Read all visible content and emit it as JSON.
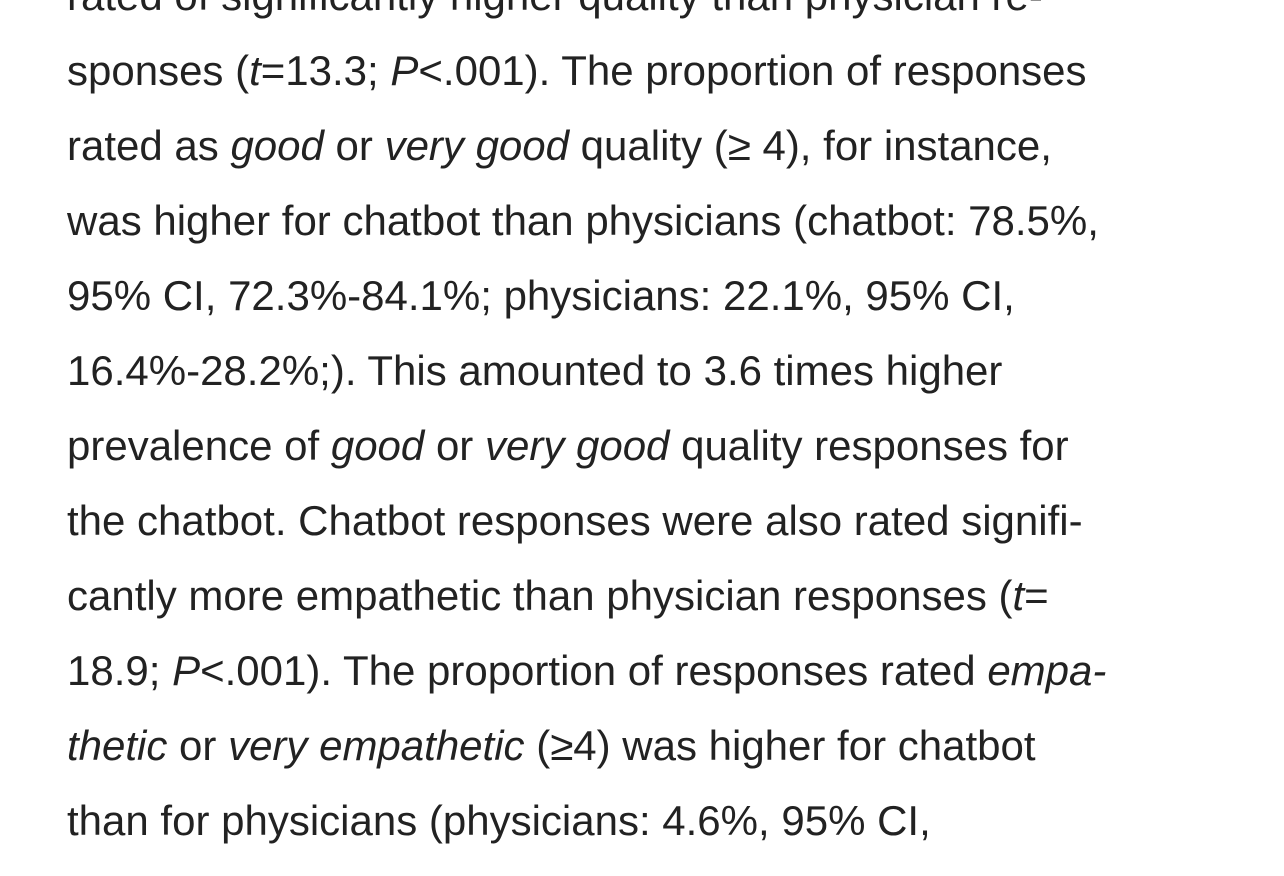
{
  "paragraph": {
    "lines": [
      [
        {
          "text": "rated of significantly higher quality than physician re-",
          "italic": false
        }
      ],
      [
        {
          "text": "sponses (",
          "italic": false
        },
        {
          "text": "t",
          "italic": true
        },
        {
          "text": "=13.3; ",
          "italic": false
        },
        {
          "text": "P",
          "italic": true
        },
        {
          "text": "<.001). The proportion of responses",
          "italic": false
        }
      ],
      [
        {
          "text": "rated as ",
          "italic": false
        },
        {
          "text": "good",
          "italic": true
        },
        {
          "text": " or ",
          "italic": false
        },
        {
          "text": "very good",
          "italic": true
        },
        {
          "text": " quality (≥ 4), for instance,",
          "italic": false
        }
      ],
      [
        {
          "text": "was higher for chatbot than physicians (chatbot: 78.5%,",
          "italic": false
        }
      ],
      [
        {
          "text": "95% CI, 72.3%-84.1%; physicians: 22.1%, 95% CI,",
          "italic": false
        }
      ],
      [
        {
          "text": "16.4%-28.2%;). This amounted to 3.6 times higher",
          "italic": false
        }
      ],
      [
        {
          "text": "prevalence of ",
          "italic": false
        },
        {
          "text": "good",
          "italic": true
        },
        {
          "text": " or ",
          "italic": false
        },
        {
          "text": "very good",
          "italic": true
        },
        {
          "text": " quality responses for",
          "italic": false
        }
      ],
      [
        {
          "text": "the chatbot. Chatbot responses were also rated signifi-",
          "italic": false
        }
      ],
      [
        {
          "text": "cantly more empathetic than physician responses (",
          "italic": false
        },
        {
          "text": "t",
          "italic": true
        },
        {
          "text": "=",
          "italic": false
        }
      ],
      [
        {
          "text": "18.9; ",
          "italic": false
        },
        {
          "text": "P",
          "italic": true
        },
        {
          "text": "<.001). The proportion of responses rated ",
          "italic": false
        },
        {
          "text": "empa-",
          "italic": true
        }
      ],
      [
        {
          "text": "thetic",
          "italic": true
        },
        {
          "text": " or ",
          "italic": false
        },
        {
          "text": "very empathetic",
          "italic": true
        },
        {
          "text": " (≥4) was higher for chatbot",
          "italic": false
        }
      ],
      [
        {
          "text": "than for physicians (physicians: 4.6%, 95% CI,",
          "italic": false
        }
      ]
    ]
  }
}
